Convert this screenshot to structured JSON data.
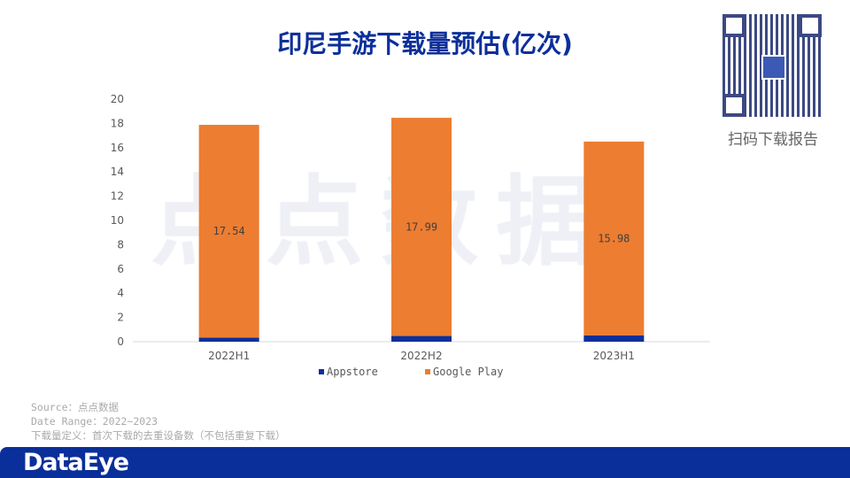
{
  "qr_label": "扫码下载报告",
  "watermark": "点点数据",
  "notes": [
    "Source：点点数据",
    "Date Range：2022~2023",
    "下载量定义：首次下载的去重设备数（不包括重复下载）"
  ],
  "footer": {
    "logo": "DataEye"
  },
  "colors": {
    "appstore": "#0b2f9a",
    "google_play": "#ed7d31",
    "brand": "#0b2f9a"
  },
  "chart_data": {
    "type": "bar",
    "stacked": true,
    "title": "印尼手游下载量预估(亿次)",
    "categories": [
      "2022H1",
      "2022H2",
      "2023H1"
    ],
    "series": [
      {
        "name": "Appstore",
        "values": [
          0.34,
          0.47,
          0.52
        ]
      },
      {
        "name": "Google Play",
        "values": [
          17.54,
          17.99,
          15.98
        ]
      }
    ],
    "ylim": [
      0,
      20
    ],
    "yticks": [
      0,
      2,
      4,
      6,
      8,
      10,
      12,
      14,
      16,
      18,
      20
    ],
    "grid": false,
    "legend": "bottom"
  }
}
